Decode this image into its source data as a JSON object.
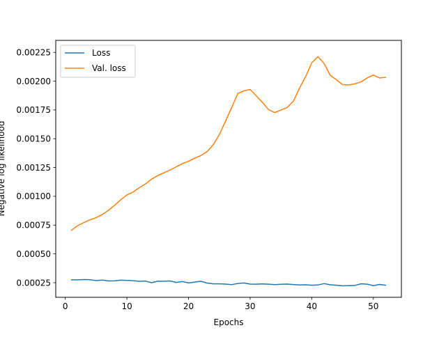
{
  "chart_data": {
    "type": "line",
    "title": "",
    "xlabel": "Epochs",
    "ylabel": "Negative log likelihood",
    "xlim": [
      -1.55,
      54.55
    ],
    "ylim": [
      0.000123,
      0.002354
    ],
    "xticks": [
      0,
      10,
      20,
      30,
      40,
      50
    ],
    "xtick_labels": [
      "0",
      "10",
      "20",
      "30",
      "40",
      "50"
    ],
    "yticks": [
      0.00025,
      0.0005,
      0.00075,
      0.001,
      0.00125,
      0.0015,
      0.00175,
      0.002,
      0.00225
    ],
    "ytick_labels": [
      "0.00025",
      "0.00050",
      "0.00075",
      "0.00100",
      "0.00125",
      "0.00150",
      "0.00175",
      "0.00200",
      "0.00225"
    ],
    "grid": false,
    "legend_position": "upper-left",
    "x": [
      1,
      2,
      3,
      4,
      5,
      6,
      7,
      8,
      9,
      10,
      11,
      12,
      13,
      14,
      15,
      16,
      17,
      18,
      19,
      20,
      21,
      22,
      23,
      24,
      25,
      26,
      27,
      28,
      29,
      30,
      31,
      32,
      33,
      34,
      35,
      36,
      37,
      38,
      39,
      40,
      41,
      42,
      43,
      44,
      45,
      46,
      47,
      48,
      49,
      50,
      51,
      52
    ],
    "series": [
      {
        "name": "Loss",
        "color": "#1f77b4",
        "values": [
          0.000275,
          0.000275,
          0.000277,
          0.000276,
          0.000268,
          0.000273,
          0.000265,
          0.000266,
          0.000272,
          0.00027,
          0.000267,
          0.000262,
          0.000264,
          0.00025,
          0.000263,
          0.000263,
          0.000265,
          0.000252,
          0.00026,
          0.000248,
          0.000255,
          0.000262,
          0.000247,
          0.00024,
          0.00024,
          0.000238,
          0.000233,
          0.000243,
          0.000248,
          0.000238,
          0.000237,
          0.000239,
          0.000237,
          0.000233,
          0.000236,
          0.000238,
          0.000234,
          0.00023,
          0.000232,
          0.000228,
          0.00023,
          0.000242,
          0.000232,
          0.000228,
          0.000223,
          0.000224,
          0.000226,
          0.00024,
          0.000237,
          0.000224,
          0.000235,
          0.000228
        ]
      },
      {
        "name": "Val. loss",
        "color": "#ff7f0e",
        "values": [
          0.000705,
          0.000745,
          0.000772,
          0.000795,
          0.000815,
          0.000842,
          0.000878,
          0.000922,
          0.00097,
          0.001012,
          0.001037,
          0.001075,
          0.001107,
          0.001149,
          0.00118,
          0.001204,
          0.001228,
          0.001256,
          0.001284,
          0.001304,
          0.001331,
          0.001354,
          0.001387,
          0.001447,
          0.001536,
          0.001652,
          0.001771,
          0.001893,
          0.001916,
          0.001928,
          0.001872,
          0.001815,
          0.001752,
          0.001727,
          0.001749,
          0.001771,
          0.001825,
          0.001938,
          0.002039,
          0.002159,
          0.002213,
          0.002154,
          0.00205,
          0.002012,
          0.00197,
          0.001967,
          0.001977,
          0.001993,
          0.002028,
          0.002053,
          0.002028,
          0.002033
        ]
      }
    ]
  }
}
